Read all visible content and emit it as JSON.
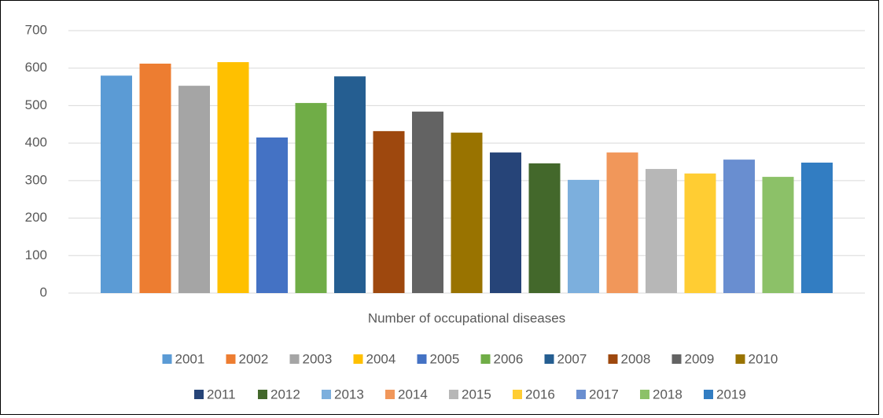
{
  "chart_data": {
    "type": "bar",
    "categories": [
      "Number of occupational diseases"
    ],
    "series": [
      {
        "name": "2001",
        "color": "#5b9bd5",
        "values": [
          580
        ]
      },
      {
        "name": "2002",
        "color": "#ed7d31",
        "values": [
          612
        ]
      },
      {
        "name": "2003",
        "color": "#a5a5a5",
        "values": [
          553
        ]
      },
      {
        "name": "2004",
        "color": "#ffc000",
        "values": [
          616
        ]
      },
      {
        "name": "2005",
        "color": "#4472c4",
        "values": [
          415
        ]
      },
      {
        "name": "2006",
        "color": "#70ad47",
        "values": [
          507
        ]
      },
      {
        "name": "2007",
        "color": "#255e91",
        "values": [
          578
        ]
      },
      {
        "name": "2008",
        "color": "#9e480e",
        "values": [
          432
        ]
      },
      {
        "name": "2009",
        "color": "#636363",
        "values": [
          484
        ]
      },
      {
        "name": "2010",
        "color": "#997300",
        "values": [
          428
        ]
      },
      {
        "name": "2011",
        "color": "#264478",
        "values": [
          375
        ]
      },
      {
        "name": "2012",
        "color": "#43682b",
        "values": [
          346
        ]
      },
      {
        "name": "2013",
        "color": "#7cafdd",
        "values": [
          302
        ]
      },
      {
        "name": "2014",
        "color": "#f1975a",
        "values": [
          375
        ]
      },
      {
        "name": "2015",
        "color": "#b7b7b7",
        "values": [
          331
        ]
      },
      {
        "name": "2016",
        "color": "#ffcd33",
        "values": [
          319
        ]
      },
      {
        "name": "2017",
        "color": "#698ed0",
        "values": [
          356
        ]
      },
      {
        "name": "2018",
        "color": "#8cc168",
        "values": [
          310
        ]
      },
      {
        "name": "2019",
        "color": "#327dc2",
        "values": [
          348
        ]
      }
    ],
    "ylim": [
      0,
      700
    ],
    "yticks": [
      0,
      100,
      200,
      300,
      400,
      500,
      600,
      700
    ],
    "grid": true,
    "legend": "bottom"
  }
}
